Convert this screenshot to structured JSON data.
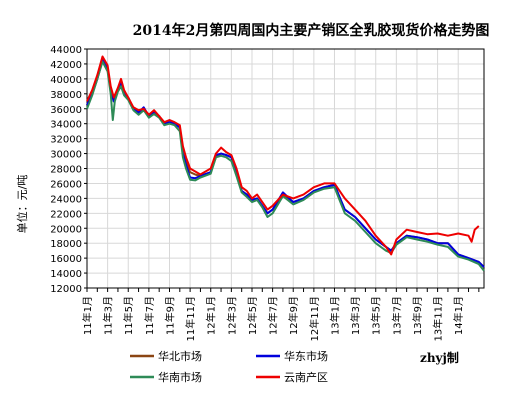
{
  "chart_data": {
    "type": "line",
    "title": "2014年2月第四周国内主要产销区全乳胶现货价格走势图",
    "ylabel": "单位：元/吨",
    "xlabel": "",
    "ylim": [
      12000,
      44000
    ],
    "yticks": [
      12000,
      14000,
      16000,
      18000,
      20000,
      22000,
      24000,
      26000,
      28000,
      30000,
      32000,
      34000,
      36000,
      38000,
      40000,
      42000,
      44000
    ],
    "x_ticks": [
      "11年1月",
      "11年3月",
      "11年5月",
      "11年7月",
      "11年9月",
      "11年11月",
      "12年1月",
      "12年3月",
      "12年5月",
      "12年7月",
      "12年9月",
      "12年11月",
      "13年1月",
      "13年3月",
      "13年5月",
      "13年7月",
      "13年9月",
      "13年11月",
      "14年1月"
    ],
    "x_range": [
      0,
      38.5
    ],
    "grid": true,
    "legend_position": "bottom",
    "series": [
      {
        "name": "华北市场",
        "color": "#8b4513",
        "points": [
          [
            0,
            36500
          ],
          [
            0.5,
            38000
          ],
          [
            1,
            40000
          ],
          [
            1.5,
            42500
          ],
          [
            2,
            41500
          ],
          [
            2.3,
            38500
          ],
          [
            2.6,
            37000
          ],
          [
            3,
            38500
          ],
          [
            3.3,
            39500
          ],
          [
            3.6,
            38000
          ],
          [
            4,
            37500
          ],
          [
            4.5,
            36000
          ],
          [
            5,
            35500
          ],
          [
            5.5,
            36000
          ],
          [
            6,
            35000
          ],
          [
            6.5,
            35500
          ],
          [
            7,
            35000
          ],
          [
            7.5,
            34000
          ],
          [
            8,
            34200
          ],
          [
            8.5,
            34000
          ],
          [
            9,
            33500
          ],
          [
            9.3,
            30000
          ],
          [
            9.6,
            29000
          ],
          [
            10,
            27500
          ],
          [
            10.5,
            27200
          ],
          [
            11,
            27000
          ],
          [
            12,
            27500
          ],
          [
            12.5,
            29500
          ],
          [
            13,
            30000
          ],
          [
            13.5,
            29800
          ],
          [
            14,
            29500
          ],
          [
            14.5,
            27500
          ],
          [
            15,
            25000
          ],
          [
            15.5,
            24500
          ],
          [
            16,
            23800
          ],
          [
            16.5,
            24000
          ],
          [
            17,
            23000
          ],
          [
            17.5,
            22000
          ],
          [
            18,
            22500
          ],
          [
            19,
            24500
          ],
          [
            20,
            23500
          ],
          [
            21,
            24000
          ],
          [
            22,
            25000
          ],
          [
            23,
            25500
          ],
          [
            24,
            25800
          ],
          [
            25,
            22500
          ],
          [
            26,
            21500
          ],
          [
            27,
            20000
          ],
          [
            28,
            18500
          ],
          [
            29,
            17500
          ],
          [
            29.5,
            17000
          ],
          [
            30,
            18000
          ],
          [
            31,
            19000
          ],
          [
            32,
            18800
          ],
          [
            33,
            18500
          ],
          [
            34,
            18000
          ],
          [
            35,
            18000
          ],
          [
            36,
            16500
          ],
          [
            37,
            16000
          ],
          [
            38,
            15500
          ],
          [
            38.5,
            14800
          ]
        ]
      },
      {
        "name": "华东市场",
        "color": "#0000dd",
        "points": [
          [
            0,
            36500
          ],
          [
            0.5,
            38000
          ],
          [
            1,
            40000
          ],
          [
            1.5,
            42500
          ],
          [
            2,
            41500
          ],
          [
            2.3,
            38500
          ],
          [
            2.6,
            37000
          ],
          [
            3,
            38500
          ],
          [
            3.3,
            39500
          ],
          [
            3.6,
            38000
          ],
          [
            4,
            37500
          ],
          [
            4.5,
            36000
          ],
          [
            5,
            35500
          ],
          [
            5.5,
            36200
          ],
          [
            6,
            35000
          ],
          [
            6.5,
            35500
          ],
          [
            7,
            35000
          ],
          [
            7.5,
            34000
          ],
          [
            8,
            34200
          ],
          [
            8.5,
            34000
          ],
          [
            9,
            33500
          ],
          [
            9.3,
            30000
          ],
          [
            9.6,
            28500
          ],
          [
            10,
            26800
          ],
          [
            10.5,
            26700
          ],
          [
            11,
            27000
          ],
          [
            12,
            27500
          ],
          [
            12.5,
            29800
          ],
          [
            13,
            30000
          ],
          [
            13.5,
            29800
          ],
          [
            14,
            29500
          ],
          [
            14.5,
            27500
          ],
          [
            15,
            25000
          ],
          [
            15.5,
            24500
          ],
          [
            16,
            23800
          ],
          [
            16.5,
            24000
          ],
          [
            17,
            23000
          ],
          [
            17.5,
            22000
          ],
          [
            18,
            22500
          ],
          [
            19,
            24800
          ],
          [
            20,
            23500
          ],
          [
            21,
            24000
          ],
          [
            22,
            25000
          ],
          [
            23,
            25500
          ],
          [
            24,
            25800
          ],
          [
            25,
            22500
          ],
          [
            26,
            21500
          ],
          [
            27,
            20000
          ],
          [
            28,
            18500
          ],
          [
            29,
            17500
          ],
          [
            29.5,
            17000
          ],
          [
            30,
            18000
          ],
          [
            31,
            19000
          ],
          [
            32,
            18800
          ],
          [
            33,
            18500
          ],
          [
            34,
            18000
          ],
          [
            35,
            18000
          ],
          [
            36,
            16500
          ],
          [
            37,
            16000
          ],
          [
            38,
            15500
          ],
          [
            38.5,
            14800
          ]
        ]
      },
      {
        "name": "华南市场",
        "color": "#2e8b57",
        "points": [
          [
            0,
            36000
          ],
          [
            0.5,
            37800
          ],
          [
            1,
            40000
          ],
          [
            1.5,
            42300
          ],
          [
            2,
            41000
          ],
          [
            2.3,
            38000
          ],
          [
            2.5,
            34500
          ],
          [
            2.7,
            37000
          ],
          [
            3,
            38300
          ],
          [
            3.3,
            39000
          ],
          [
            3.6,
            37800
          ],
          [
            4,
            37200
          ],
          [
            4.5,
            35800
          ],
          [
            5,
            35200
          ],
          [
            5.5,
            35800
          ],
          [
            6,
            34800
          ],
          [
            6.5,
            35300
          ],
          [
            7,
            34800
          ],
          [
            7.5,
            33800
          ],
          [
            8,
            34000
          ],
          [
            8.5,
            33800
          ],
          [
            9,
            33000
          ],
          [
            9.3,
            29500
          ],
          [
            9.6,
            28000
          ],
          [
            10,
            26500
          ],
          [
            10.5,
            26400
          ],
          [
            11,
            26800
          ],
          [
            12,
            27300
          ],
          [
            12.5,
            29500
          ],
          [
            13,
            29700
          ],
          [
            13.5,
            29500
          ],
          [
            14,
            29000
          ],
          [
            14.5,
            27000
          ],
          [
            15,
            24800
          ],
          [
            15.5,
            24200
          ],
          [
            16,
            23500
          ],
          [
            16.5,
            23800
          ],
          [
            17,
            22800
          ],
          [
            17.5,
            21500
          ],
          [
            18,
            22000
          ],
          [
            19,
            24300
          ],
          [
            20,
            23200
          ],
          [
            21,
            23800
          ],
          [
            22,
            24800
          ],
          [
            23,
            25300
          ],
          [
            24,
            25500
          ],
          [
            25,
            22000
          ],
          [
            26,
            21000
          ],
          [
            27,
            19500
          ],
          [
            28,
            18000
          ],
          [
            29,
            17000
          ],
          [
            29.5,
            16700
          ],
          [
            30,
            17800
          ],
          [
            31,
            18800
          ],
          [
            32,
            18500
          ],
          [
            33,
            18200
          ],
          [
            34,
            17800
          ],
          [
            35,
            17500
          ],
          [
            36,
            16200
          ],
          [
            37,
            15800
          ],
          [
            38,
            15200
          ],
          [
            38.5,
            14300
          ]
        ]
      },
      {
        "name": "云南产区",
        "color": "#ee0000",
        "points": [
          [
            0,
            37000
          ],
          [
            0.5,
            38500
          ],
          [
            1,
            40500
          ],
          [
            1.5,
            43000
          ],
          [
            2,
            41800
          ],
          [
            2.3,
            39000
          ],
          [
            2.6,
            37500
          ],
          [
            3,
            38800
          ],
          [
            3.3,
            40000
          ],
          [
            3.6,
            38500
          ],
          [
            4,
            37500
          ],
          [
            4.5,
            36200
          ],
          [
            5,
            35800
          ],
          [
            5.5,
            36000
          ],
          [
            6,
            35200
          ],
          [
            6.5,
            35800
          ],
          [
            7,
            35000
          ],
          [
            7.5,
            34200
          ],
          [
            8,
            34500
          ],
          [
            8.5,
            34200
          ],
          [
            9,
            33800
          ],
          [
            9.3,
            31000
          ],
          [
            9.6,
            29500
          ],
          [
            10,
            28000
          ],
          [
            10.5,
            27600
          ],
          [
            11,
            27200
          ],
          [
            12,
            28000
          ],
          [
            12.5,
            30000
          ],
          [
            13,
            30800
          ],
          [
            13.5,
            30200
          ],
          [
            14,
            29800
          ],
          [
            14.5,
            28000
          ],
          [
            15,
            25500
          ],
          [
            15.5,
            25000
          ],
          [
            16,
            24000
          ],
          [
            16.5,
            24500
          ],
          [
            17,
            23500
          ],
          [
            17.5,
            22500
          ],
          [
            18,
            23000
          ],
          [
            19,
            24500
          ],
          [
            20,
            24000
          ],
          [
            21,
            24500
          ],
          [
            22,
            25500
          ],
          [
            23,
            26000
          ],
          [
            24,
            26000
          ],
          [
            25,
            24000
          ],
          [
            26,
            22500
          ],
          [
            27,
            21000
          ],
          [
            28,
            19000
          ],
          [
            29,
            17500
          ],
          [
            29.5,
            16500
          ],
          [
            30,
            18500
          ],
          [
            31,
            19800
          ],
          [
            32,
            19500
          ],
          [
            33,
            19200
          ],
          [
            34,
            19300
          ],
          [
            35,
            19000
          ],
          [
            36,
            19300
          ],
          [
            37,
            19000
          ],
          [
            37.3,
            18200
          ],
          [
            37.6,
            19800
          ],
          [
            38,
            20300
          ]
        ]
      }
    ],
    "legend": [
      {
        "name": "华北市场",
        "color": "#8b4513"
      },
      {
        "name": "华东市场",
        "color": "#0000dd"
      },
      {
        "name": "华南市场",
        "color": "#2e8b57"
      },
      {
        "name": "云南产区",
        "color": "#ee0000"
      }
    ],
    "credit": "zhyj制"
  }
}
